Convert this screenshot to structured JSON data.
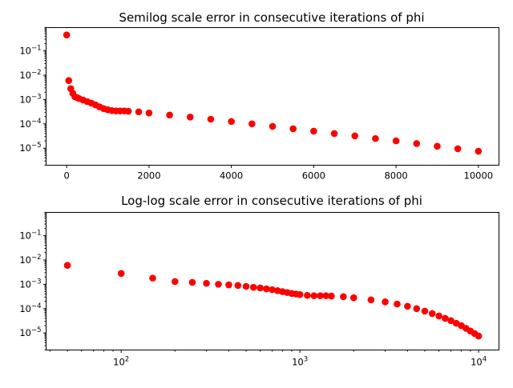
{
  "figure": {
    "background": "#ffffff"
  },
  "chart_data": [
    {
      "type": "scatter",
      "title": "Semilog scale error in consecutive iterations of phi",
      "xlabel": "",
      "ylabel": "",
      "xscale": "linear",
      "yscale": "log",
      "xlim": [
        -500,
        10500
      ],
      "ylim": [
        2e-06,
        0.9
      ],
      "x_ticks": [
        0,
        2000,
        4000,
        6000,
        8000,
        10000
      ],
      "x_tick_labels": [
        "0",
        "2000",
        "4000",
        "6000",
        "8000",
        "10000"
      ],
      "y_ticks": [
        {
          "value": 0.1,
          "base": "10",
          "exp": "−1"
        },
        {
          "value": 0.01,
          "base": "10",
          "exp": "−2"
        },
        {
          "value": 0.001,
          "base": "10",
          "exp": "−3"
        },
        {
          "value": 0.0001,
          "base": "10",
          "exp": "−4"
        },
        {
          "value": 1e-05,
          "base": "10",
          "exp": "−5"
        }
      ],
      "grid": false,
      "marker_color": "#ff0000",
      "series": [
        {
          "x": [
            0,
            50,
            100,
            150,
            200,
            250,
            300,
            400,
            500,
            600,
            700,
            800,
            900,
            1000,
            1100,
            1200,
            1300,
            1400,
            1500,
            1750,
            2000,
            2500,
            3000,
            3500,
            4000,
            4500,
            5000,
            5500,
            6000,
            6500,
            7000,
            7500,
            8000,
            8500,
            9000,
            9500,
            10000
          ],
          "y": [
            0.45,
            0.006,
            0.0028,
            0.0018,
            0.0013,
            0.0012,
            0.0011,
            0.00095,
            0.00082,
            0.00071,
            0.0006,
            0.0005,
            0.00042,
            0.00038,
            0.00035,
            0.00034,
            0.00034,
            0.00034,
            0.00033,
            0.00031,
            0.00028,
            0.00023,
            0.00019,
            0.000155,
            0.000125,
            0.0001,
            7.9e-05,
            6.3e-05,
            5e-05,
            4e-05,
            3.2e-05,
            2.5e-05,
            2e-05,
            1.55e-05,
            1.2e-05,
            9.5e-06,
            7.5e-06
          ]
        }
      ]
    },
    {
      "type": "scatter",
      "title": "Log-log scale error in consecutive iterations of phi",
      "xlabel": "",
      "ylabel": "",
      "xscale": "log",
      "yscale": "log",
      "xlim": [
        38,
        13000
      ],
      "ylim": [
        2e-06,
        0.9
      ],
      "x_ticks": [
        {
          "value": 100,
          "base": "10",
          "exp": "2"
        },
        {
          "value": 1000,
          "base": "10",
          "exp": "3"
        },
        {
          "value": 10000,
          "base": "10",
          "exp": "4"
        }
      ],
      "y_ticks": [
        {
          "value": 0.1,
          "base": "10",
          "exp": "−1"
        },
        {
          "value": 0.01,
          "base": "10",
          "exp": "−2"
        },
        {
          "value": 0.001,
          "base": "10",
          "exp": "−3"
        },
        {
          "value": 0.0001,
          "base": "10",
          "exp": "−4"
        },
        {
          "value": 1e-05,
          "base": "10",
          "exp": "−5"
        }
      ],
      "grid": false,
      "marker_color": "#ff0000",
      "series": [
        {
          "x": [
            50,
            100,
            150,
            200,
            250,
            300,
            350,
            400,
            450,
            500,
            550,
            600,
            650,
            700,
            750,
            800,
            850,
            900,
            950,
            1000,
            1100,
            1200,
            1300,
            1400,
            1500,
            1750,
            2000,
            2500,
            3000,
            3500,
            4000,
            4500,
            5000,
            5500,
            6000,
            6500,
            7000,
            7500,
            8000,
            8500,
            9000,
            9500,
            10000
          ],
          "y": [
            0.006,
            0.0028,
            0.0018,
            0.0013,
            0.0012,
            0.0011,
            0.001,
            0.00095,
            0.0009,
            0.00082,
            0.00075,
            0.00071,
            0.00065,
            0.0006,
            0.00055,
            0.0005,
            0.00046,
            0.00042,
            0.0004,
            0.00038,
            0.00035,
            0.00034,
            0.00034,
            0.00034,
            0.00033,
            0.00031,
            0.00028,
            0.00023,
            0.00019,
            0.000155,
            0.000125,
            0.0001,
            7.9e-05,
            6.3e-05,
            5e-05,
            4e-05,
            3.2e-05,
            2.5e-05,
            2e-05,
            1.55e-05,
            1.2e-05,
            9.5e-06,
            7.5e-06
          ]
        }
      ]
    }
  ]
}
